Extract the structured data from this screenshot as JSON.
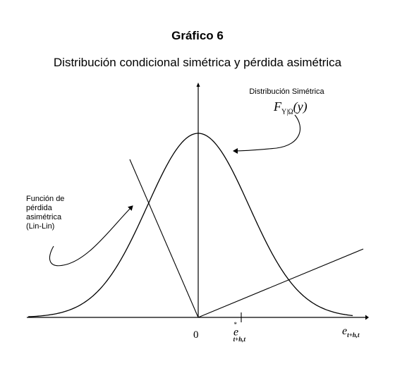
{
  "title": "Gráfico 6",
  "subtitle": "Distribución condicional simétrica y pérdida asimétrica",
  "annotations": {
    "distribution_label": "Distribución Simétrica",
    "distribution_formula_main": "F",
    "distribution_formula_sub": "Y|Ω",
    "distribution_formula_arg": "(y)",
    "loss_label_line1": "Función de",
    "loss_label_line2": "pérdida",
    "loss_label_line3": "asimétrica",
    "loss_label_line4": "(Lin-Lin)"
  },
  "axis": {
    "origin_label": "0",
    "optimal_point_main": "e",
    "optimal_point_sup": "*",
    "optimal_point_sub": "t+h,t",
    "x_axis_main": "e",
    "x_axis_sub": "t+h,t"
  }
}
